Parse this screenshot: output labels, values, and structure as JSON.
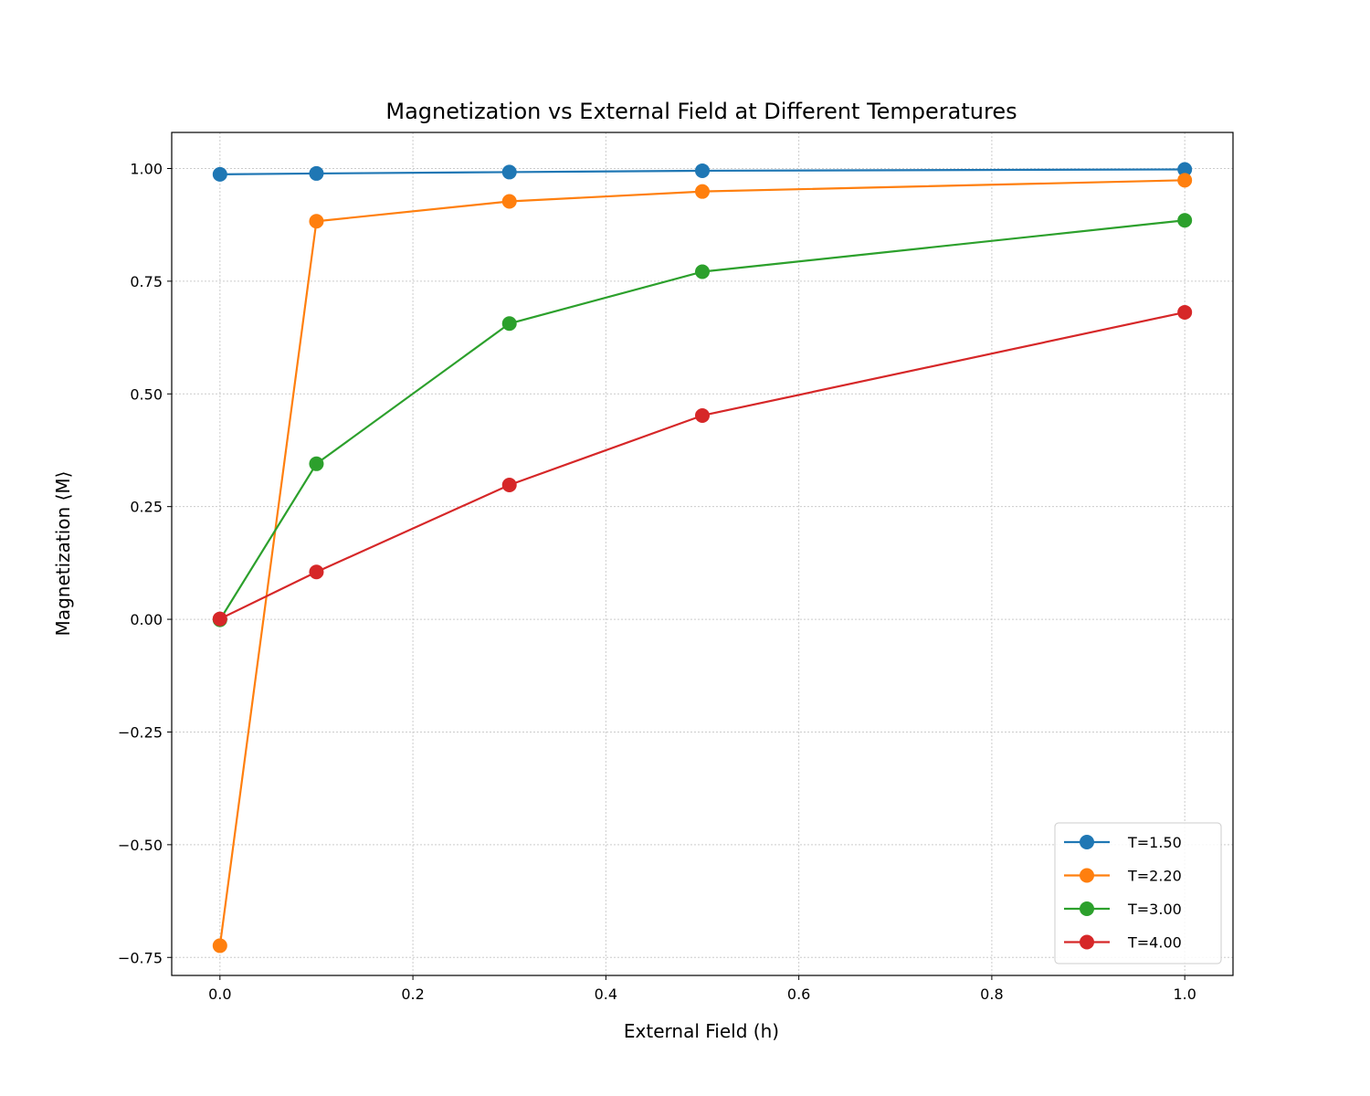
{
  "chart_data": {
    "type": "line",
    "title": "Magnetization vs External Field at Different Temperatures",
    "xlabel": "External Field (h)",
    "ylabel": "Magnetization ⟨M⟩",
    "xlim": [
      -0.05,
      1.05
    ],
    "ylim": [
      -0.79,
      1.08
    ],
    "xticks": [
      0.0,
      0.2,
      0.4,
      0.6,
      0.8,
      1.0
    ],
    "xtick_labels": [
      "0.0",
      "0.2",
      "0.4",
      "0.6",
      "0.8",
      "1.0"
    ],
    "yticks": [
      -0.75,
      -0.5,
      -0.25,
      0.0,
      0.25,
      0.5,
      0.75,
      1.0
    ],
    "ytick_labels": [
      "−0.75",
      "−0.50",
      "−0.25",
      "0.00",
      "0.25",
      "0.50",
      "0.75",
      "1.00"
    ],
    "grid": true,
    "legend_position": "lower-right",
    "x": [
      0.0,
      0.1,
      0.3,
      0.5,
      1.0
    ],
    "series": [
      {
        "name": "T=1.50",
        "color": "#1f77b4",
        "values": [
          0.987,
          0.989,
          0.992,
          0.995,
          0.998
        ]
      },
      {
        "name": "T=2.20",
        "color": "#ff7f0e",
        "values": [
          -0.724,
          0.883,
          0.927,
          0.949,
          0.974
        ]
      },
      {
        "name": "T=3.00",
        "color": "#2ca02c",
        "values": [
          -0.001,
          0.345,
          0.656,
          0.771,
          0.885
        ]
      },
      {
        "name": "T=4.00",
        "color": "#d62728",
        "values": [
          0.001,
          0.105,
          0.298,
          0.452,
          0.681
        ]
      }
    ]
  }
}
